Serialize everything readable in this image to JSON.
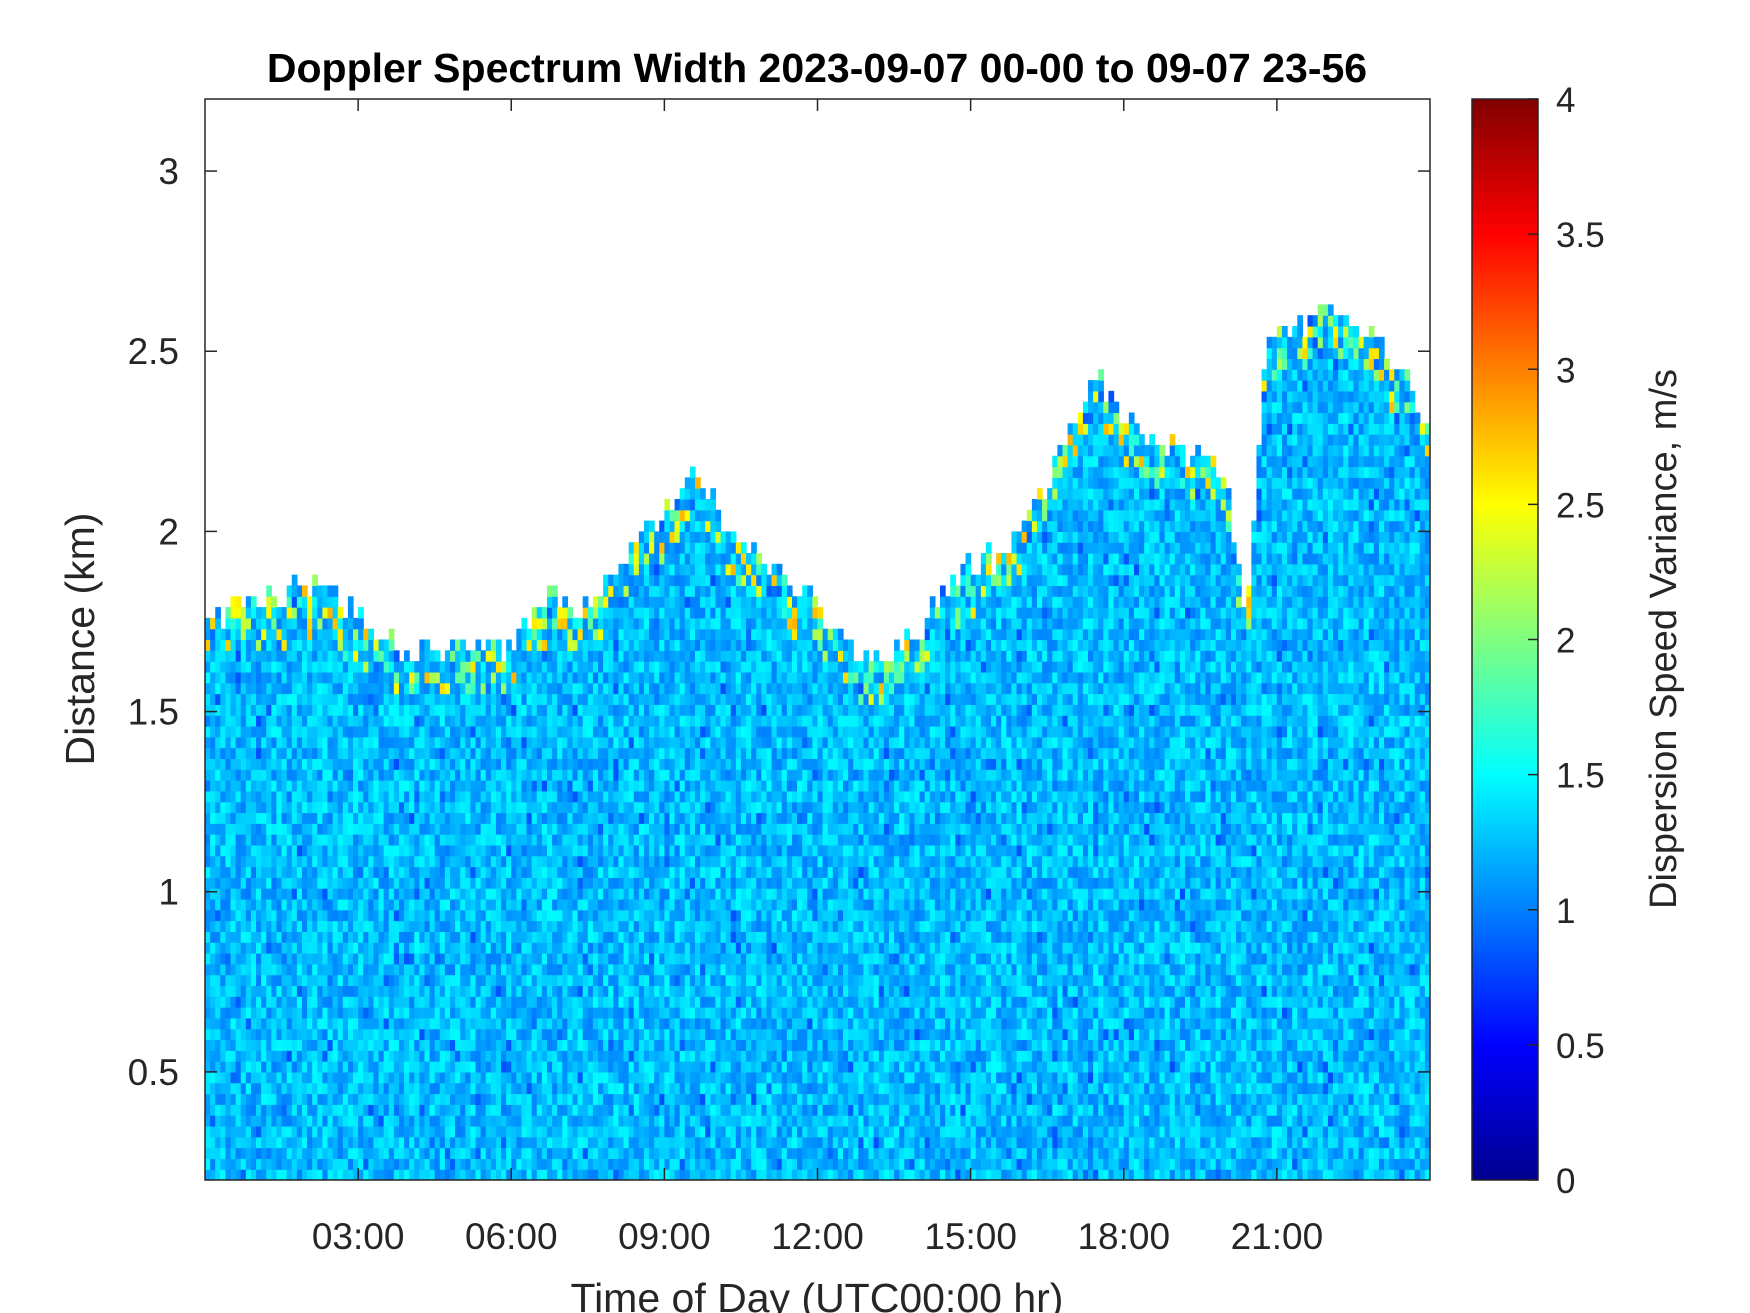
{
  "chart_data": {
    "type": "heatmap",
    "title": "Doppler Spectrum Width 2023-09-07 00-00 to 09-07 23-56",
    "xlabel": "Time of Day (UTC00:00 hr)",
    "ylabel": "Distance (km)",
    "colorbar_label": "Dispersion Speed Variance, m/s",
    "colormap": "jet",
    "xlim_hours": [
      0,
      24
    ],
    "ylim_km": [
      0.2,
      3.2
    ],
    "clim": [
      0,
      4
    ],
    "x_ticks": [
      {
        "hour": 3,
        "label": "03:00"
      },
      {
        "hour": 6,
        "label": "06:00"
      },
      {
        "hour": 9,
        "label": "09:00"
      },
      {
        "hour": 12,
        "label": "12:00"
      },
      {
        "hour": 15,
        "label": "15:00"
      },
      {
        "hour": 18,
        "label": "18:00"
      },
      {
        "hour": 21,
        "label": "21:00"
      }
    ],
    "y_ticks": [
      {
        "value": 0.5,
        "label": "0.5"
      },
      {
        "value": 1,
        "label": "1"
      },
      {
        "value": 1.5,
        "label": "1.5"
      },
      {
        "value": 2,
        "label": "2"
      },
      {
        "value": 2.5,
        "label": "2.5"
      },
      {
        "value": 3,
        "label": "3"
      }
    ],
    "colorbar_ticks": [
      {
        "value": 0,
        "label": "0"
      },
      {
        "value": 0.5,
        "label": "0.5"
      },
      {
        "value": 1,
        "label": "1"
      },
      {
        "value": 1.5,
        "label": "1.5"
      },
      {
        "value": 2,
        "label": "2"
      },
      {
        "value": 2.5,
        "label": "2.5"
      },
      {
        "value": 3,
        "label": "3"
      },
      {
        "value": 3.5,
        "label": "3.5"
      },
      {
        "value": 4,
        "label": "4"
      }
    ],
    "typical_value_range": [
      1.0,
      1.5
    ],
    "signal_top_km": [
      {
        "hour": 0.0,
        "km": 1.72
      },
      {
        "hour": 0.5,
        "km": 1.77
      },
      {
        "hour": 1.5,
        "km": 1.82
      },
      {
        "hour": 2.5,
        "km": 1.82
      },
      {
        "hour": 3.5,
        "km": 1.7
      },
      {
        "hour": 4.2,
        "km": 1.64
      },
      {
        "hour": 5.0,
        "km": 1.68
      },
      {
        "hour": 5.9,
        "km": 1.66
      },
      {
        "hour": 6.7,
        "km": 1.82
      },
      {
        "hour": 7.4,
        "km": 1.76
      },
      {
        "hour": 8.0,
        "km": 1.86
      },
      {
        "hour": 9.0,
        "km": 2.05
      },
      {
        "hour": 9.6,
        "km": 2.15
      },
      {
        "hour": 10.5,
        "km": 1.95
      },
      {
        "hour": 11.5,
        "km": 1.86
      },
      {
        "hour": 12.5,
        "km": 1.68
      },
      {
        "hour": 13.2,
        "km": 1.62
      },
      {
        "hour": 14.0,
        "km": 1.72
      },
      {
        "hour": 14.8,
        "km": 1.88
      },
      {
        "hour": 15.6,
        "km": 1.92
      },
      {
        "hour": 16.3,
        "km": 2.05
      },
      {
        "hour": 16.8,
        "km": 2.25
      },
      {
        "hour": 17.4,
        "km": 2.42
      },
      {
        "hour": 18.0,
        "km": 2.3
      },
      {
        "hour": 18.8,
        "km": 2.22
      },
      {
        "hour": 19.5,
        "km": 2.18
      },
      {
        "hour": 20.0,
        "km": 2.15
      },
      {
        "hour": 20.4,
        "km": 1.75
      },
      {
        "hour": 20.8,
        "km": 2.5
      },
      {
        "hour": 21.3,
        "km": 2.55
      },
      {
        "hour": 22.0,
        "km": 2.6
      },
      {
        "hour": 23.0,
        "km": 2.52
      },
      {
        "hour": 24.0,
        "km": 2.3
      }
    ]
  }
}
